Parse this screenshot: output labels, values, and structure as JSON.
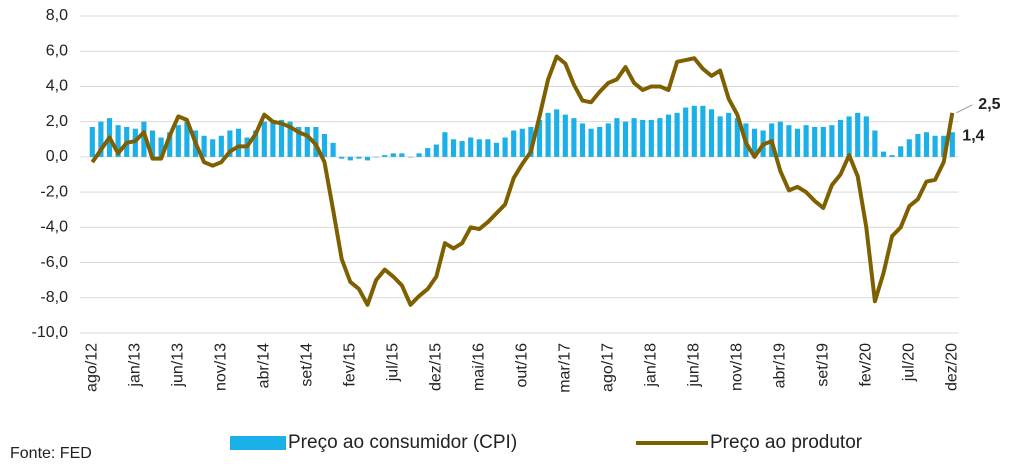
{
  "chart_data": {
    "type": "bar_line",
    "source": "Fonte: FED",
    "categories": [
      "ago/12",
      null,
      null,
      null,
      null,
      "jan/13",
      null,
      null,
      null,
      null,
      "jun/13",
      null,
      null,
      null,
      null,
      "nov/13",
      null,
      null,
      null,
      null,
      "abr/14",
      null,
      null,
      null,
      null,
      "set/14",
      null,
      null,
      null,
      null,
      "fev/15",
      null,
      null,
      null,
      null,
      "jul/15",
      null,
      null,
      null,
      null,
      "dez/15",
      null,
      null,
      null,
      null,
      "mai/16",
      null,
      null,
      null,
      null,
      "out/16",
      null,
      null,
      null,
      null,
      "mar/17",
      null,
      null,
      null,
      null,
      "ago/17",
      null,
      null,
      null,
      null,
      "jan/18",
      null,
      null,
      null,
      null,
      "jun/18",
      null,
      null,
      null,
      null,
      "nov/18",
      null,
      null,
      null,
      null,
      "abr/19",
      null,
      null,
      null,
      null,
      "set/19",
      null,
      null,
      null,
      null,
      "fev/20",
      null,
      null,
      null,
      null,
      "jul/20",
      null,
      null,
      null,
      null,
      "dez/20"
    ],
    "series": [
      {
        "name": "Preço ao consumidor (CPI)",
        "type": "bar",
        "color": "#1cb0e8",
        "values": [
          1.7,
          2.0,
          2.2,
          1.8,
          1.7,
          1.6,
          2.0,
          1.5,
          1.1,
          1.4,
          1.8,
          2.0,
          1.5,
          1.2,
          1.0,
          1.2,
          1.5,
          1.6,
          1.1,
          1.5,
          2.0,
          2.1,
          2.1,
          2.0,
          1.7,
          1.7,
          1.7,
          1.3,
          0.8,
          -0.1,
          -0.2,
          -0.1,
          -0.2,
          0.0,
          0.1,
          0.2,
          0.2,
          0.0,
          0.2,
          0.5,
          0.7,
          1.4,
          1.0,
          0.9,
          1.1,
          1.0,
          1.0,
          0.8,
          1.1,
          1.5,
          1.6,
          1.7,
          2.1,
          2.5,
          2.7,
          2.4,
          2.2,
          1.9,
          1.6,
          1.7,
          1.9,
          2.2,
          2.0,
          2.2,
          2.1,
          2.1,
          2.2,
          2.4,
          2.5,
          2.8,
          2.9,
          2.9,
          2.7,
          2.3,
          2.5,
          2.2,
          1.9,
          1.6,
          1.5,
          1.9,
          2.0,
          1.8,
          1.6,
          1.8,
          1.7,
          1.7,
          1.8,
          2.1,
          2.3,
          2.5,
          2.3,
          1.5,
          0.3,
          0.1,
          0.6,
          1.0,
          1.3,
          1.4,
          1.2,
          1.2,
          1.4
        ],
        "value_labels": [
          null,
          null,
          null,
          null,
          null,
          null,
          null,
          null,
          null,
          null,
          null,
          null,
          null,
          null,
          null,
          null,
          null,
          null,
          null,
          null,
          null,
          null,
          null,
          null,
          null,
          null,
          null,
          null,
          null,
          null,
          null,
          null,
          null,
          null,
          null,
          null,
          null,
          null,
          null,
          null,
          null,
          null,
          null,
          null,
          null,
          null,
          null,
          null,
          null,
          null,
          null,
          null,
          null,
          null,
          null,
          null,
          null,
          null,
          null,
          null,
          null,
          null,
          null,
          null,
          null,
          null,
          null,
          null,
          null,
          null,
          null,
          null,
          null,
          null,
          null,
          null,
          null,
          null,
          null,
          null,
          null,
          null,
          null,
          null,
          null,
          null,
          null,
          null,
          null,
          null,
          null,
          null,
          null,
          null,
          null,
          null,
          null,
          null,
          null,
          null,
          "1,4"
        ]
      },
      {
        "name": "Preço ao produtor",
        "type": "line",
        "color": "#7f6000",
        "values": [
          -0.3,
          0.4,
          1.1,
          0.2,
          0.8,
          0.9,
          1.4,
          -0.1,
          -0.1,
          1.2,
          2.3,
          2.1,
          0.8,
          -0.3,
          -0.5,
          -0.3,
          0.3,
          0.6,
          0.6,
          1.3,
          2.4,
          2.0,
          1.9,
          1.7,
          1.4,
          1.2,
          0.7,
          -0.3,
          -3.0,
          -5.8,
          -7.1,
          -7.5,
          -8.4,
          -7.0,
          -6.4,
          -6.8,
          -7.3,
          -8.4,
          -7.9,
          -7.5,
          -6.8,
          -4.9,
          -5.2,
          -4.9,
          -4.0,
          -4.1,
          -3.7,
          -3.2,
          -2.7,
          -1.2,
          -0.4,
          0.3,
          2.3,
          4.4,
          5.7,
          5.3,
          4.1,
          3.2,
          3.1,
          3.7,
          4.2,
          4.4,
          5.1,
          4.2,
          3.8,
          4.0,
          4.0,
          3.8,
          5.4,
          5.5,
          5.6,
          5.0,
          4.6,
          4.9,
          3.3,
          2.4,
          0.8,
          0.0,
          0.7,
          0.9,
          -0.8,
          -1.9,
          -1.7,
          -2.0,
          -2.5,
          -2.9,
          -1.6,
          -1.0,
          0.1,
          -1.1,
          -4.0,
          -8.2,
          -6.6,
          -4.5,
          -4.0,
          -2.8,
          -2.4,
          -1.4,
          -1.3,
          -0.3,
          2.5
        ],
        "value_labels": [
          null,
          null,
          null,
          null,
          null,
          null,
          null,
          null,
          null,
          null,
          null,
          null,
          null,
          null,
          null,
          null,
          null,
          null,
          null,
          null,
          null,
          null,
          null,
          null,
          null,
          null,
          null,
          null,
          null,
          null,
          null,
          null,
          null,
          null,
          null,
          null,
          null,
          null,
          null,
          null,
          null,
          null,
          null,
          null,
          null,
          null,
          null,
          null,
          null,
          null,
          null,
          null,
          null,
          null,
          null,
          null,
          null,
          null,
          null,
          null,
          null,
          null,
          null,
          null,
          null,
          null,
          null,
          null,
          null,
          null,
          null,
          null,
          null,
          null,
          null,
          null,
          null,
          null,
          null,
          null,
          null,
          null,
          null,
          null,
          null,
          null,
          null,
          null,
          null,
          null,
          null,
          null,
          null,
          null,
          null,
          null,
          null,
          null,
          null,
          null,
          "2,5"
        ]
      }
    ],
    "ylim": [
      -10,
      8
    ],
    "yticks": [
      {
        "value": -10,
        "label": "-10,0"
      },
      {
        "value": -8,
        "label": "-8,0"
      },
      {
        "value": -6,
        "label": "-6,0"
      },
      {
        "value": -4,
        "label": "-4,0"
      },
      {
        "value": -2,
        "label": "-2,0"
      },
      {
        "value": 0,
        "label": "0,0"
      },
      {
        "value": 2,
        "label": "2,0"
      },
      {
        "value": 4,
        "label": "4,0"
      },
      {
        "value": 6,
        "label": "6,0"
      },
      {
        "value": 8,
        "label": "8,0"
      }
    ],
    "grid": true,
    "legend": "bottom"
  }
}
